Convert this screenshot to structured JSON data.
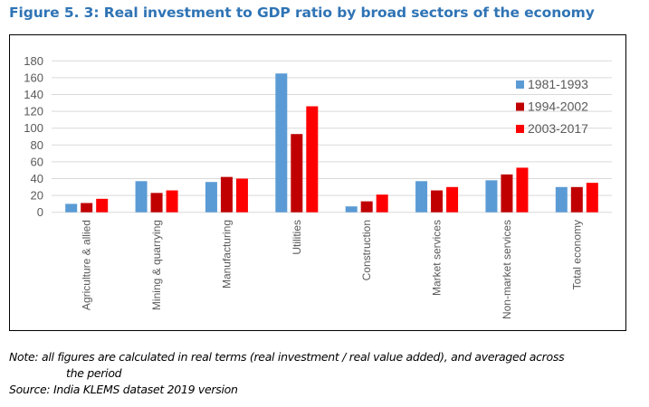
{
  "figure": {
    "title": "Figure 5. 3: Real investment to GDP ratio by broad sectors of the economy",
    "note_line1": "Note: all figures are calculated in real terms (real investment / real value added), and averaged across",
    "note_line2": "the period",
    "source": "Source: India KLEMS dataset 2019 version"
  },
  "colors": {
    "title": "#2f74b5",
    "series": [
      "#5b9bd5",
      "#c00000",
      "#ff0000"
    ],
    "grid": "#d9d9d9",
    "text": "#595959"
  },
  "chart_data": {
    "type": "bar",
    "title": "",
    "xlabel": "",
    "ylabel": "",
    "ylim": [
      0,
      180
    ],
    "yticks": [
      0,
      20,
      40,
      60,
      80,
      100,
      120,
      140,
      160,
      180
    ],
    "grid": true,
    "legend_position": "top-right",
    "categories": [
      "Agriculture & allied",
      "Mining & quarrying",
      "Manufacturing",
      "Utilities",
      "Construction",
      "Market services",
      "Non-market services",
      "Total economy"
    ],
    "series": [
      {
        "name": "1981-1993",
        "values": [
          10,
          37,
          36,
          165,
          7,
          37,
          38,
          30
        ]
      },
      {
        "name": "1994-2002",
        "values": [
          11,
          23,
          42,
          93,
          13,
          26,
          45,
          30
        ]
      },
      {
        "name": "2003-2017",
        "values": [
          16,
          26,
          40,
          126,
          21,
          30,
          53,
          35
        ]
      }
    ]
  }
}
